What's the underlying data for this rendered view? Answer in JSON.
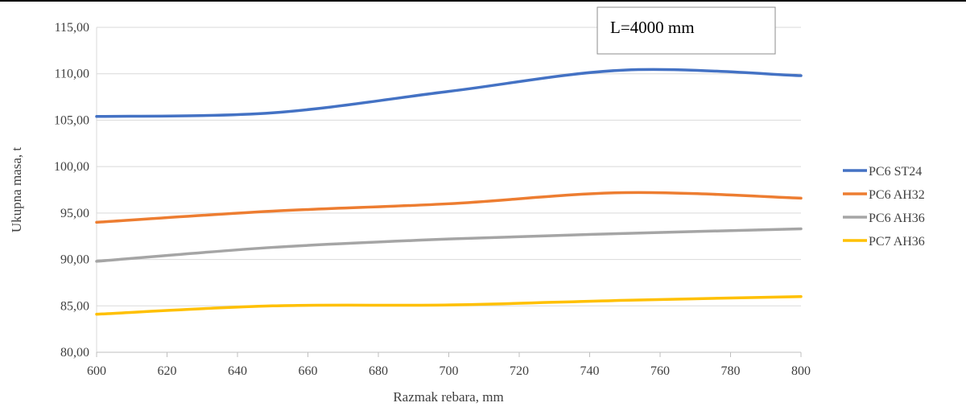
{
  "chart_data": {
    "type": "line",
    "xlabel": "Razmak rebara, mm",
    "ylabel": "Ukupna masa, t",
    "annotation": "L=4000 mm",
    "xlim": [
      600,
      800
    ],
    "ylim": [
      80,
      115
    ],
    "x_ticks": [
      600,
      620,
      640,
      660,
      680,
      700,
      720,
      740,
      760,
      780,
      800
    ],
    "y_ticks": [
      {
        "value": 80,
        "label": "80,00"
      },
      {
        "value": 85,
        "label": "85,00"
      },
      {
        "value": 90,
        "label": "90,00"
      },
      {
        "value": 95,
        "label": "95,00"
      },
      {
        "value": 100,
        "label": "100,00"
      },
      {
        "value": 105,
        "label": "105,00"
      },
      {
        "value": 110,
        "label": "110,00"
      },
      {
        "value": 115,
        "label": "115,00"
      }
    ],
    "grid": "horizontal",
    "legend_position": "right",
    "x": [
      600,
      650,
      700,
      750,
      800
    ],
    "series": [
      {
        "name": "PC6 ST24",
        "color": "#4472C4",
        "values": [
          105.4,
          105.8,
          108.1,
          110.4,
          109.8
        ]
      },
      {
        "name": "PC6 AH32",
        "color": "#ED7D31",
        "values": [
          94.0,
          95.2,
          96.0,
          97.2,
          96.6
        ]
      },
      {
        "name": "PC6 AH36",
        "color": "#A5A5A5",
        "values": [
          89.8,
          91.3,
          92.2,
          92.8,
          93.3
        ]
      },
      {
        "name": "PC7 AH36",
        "color": "#FFC000",
        "values": [
          84.1,
          85.0,
          85.1,
          85.6,
          86.0
        ]
      }
    ]
  }
}
